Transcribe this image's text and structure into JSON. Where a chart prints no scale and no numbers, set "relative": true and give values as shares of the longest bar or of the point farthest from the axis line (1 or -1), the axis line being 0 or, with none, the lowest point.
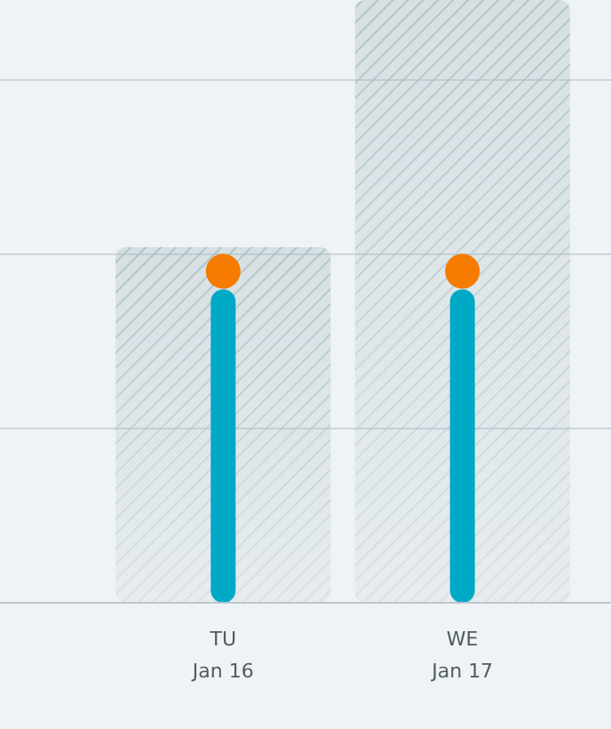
{
  "chart_data": {
    "type": "bar",
    "relative": true,
    "grid": true,
    "categories": [
      "TU\nJan 16",
      "WE\nJan 17"
    ],
    "series": [
      {
        "color": "#a9bcc1",
        "values": [
          0.59,
          1
        ]
      },
      {
        "color": "#00a9c5",
        "values": [
          0.52,
          0.52
        ]
      },
      {
        "type": "scatter",
        "color": "#f57c00",
        "marker": "circle",
        "values": [
          0.55,
          0.55
        ]
      }
    ]
  }
}
